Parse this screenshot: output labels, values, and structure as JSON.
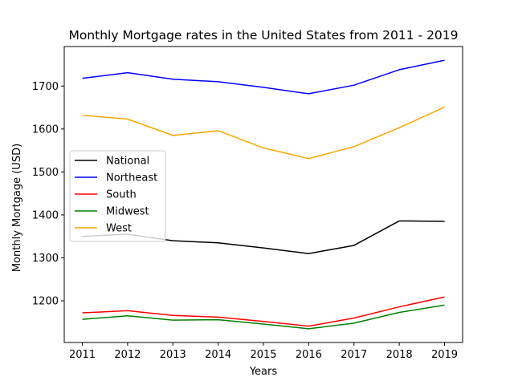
{
  "chart_data": {
    "type": "line",
    "title": "Monthly Mortgage rates in the United States from 2011 - 2019",
    "xlabel": "Years",
    "ylabel": "Monthly Mortgage (USD)",
    "x": [
      "2011",
      "2012",
      "2013",
      "2014",
      "2015",
      "2016",
      "2017",
      "2018",
      "2019"
    ],
    "ylim": [
      1103,
      1792
    ],
    "yticks": [
      1200,
      1300,
      1400,
      1500,
      1600,
      1700
    ],
    "grid": false,
    "legend_position": "center-left",
    "series": [
      {
        "name": "National",
        "color": "#000000",
        "values": [
          1350,
          1355,
          1340,
          1335,
          1323,
          1310,
          1329,
          1386,
          1385
        ]
      },
      {
        "name": "Northeast",
        "color": "#0000ff",
        "values": [
          1718,
          1731,
          1716,
          1710,
          1697,
          1682,
          1702,
          1738,
          1760
        ]
      },
      {
        "name": "South",
        "color": "#ff0000",
        "values": [
          1172,
          1177,
          1166,
          1162,
          1152,
          1141,
          1160,
          1186,
          1209
        ]
      },
      {
        "name": "Midwest",
        "color": "#008000",
        "values": [
          1157,
          1165,
          1155,
          1156,
          1146,
          1135,
          1148,
          1173,
          1190
        ]
      },
      {
        "name": "West",
        "color": "#ffa500",
        "values": [
          1632,
          1623,
          1585,
          1596,
          1556,
          1531,
          1559,
          1603,
          1651
        ]
      }
    ]
  }
}
